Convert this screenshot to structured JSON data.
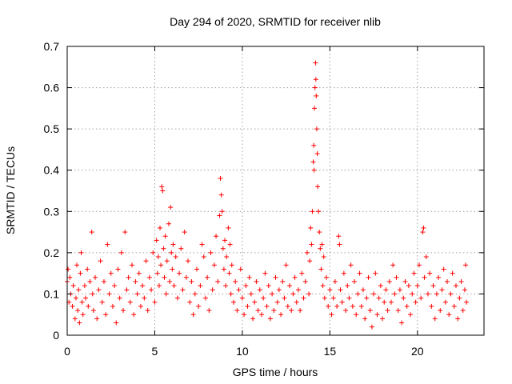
{
  "chart_data": {
    "type": "scatter",
    "title": "Day 294 of 2020, SRMTID for receiver nlib",
    "xlabel": "GPS time / hours",
    "ylabel": "SRMTID / TECUs",
    "xlim": [
      0,
      23.8
    ],
    "ylim": [
      0,
      0.7
    ],
    "x_ticks": [
      0,
      5,
      10,
      15,
      20
    ],
    "y_ticks": [
      0,
      0.1,
      0.2,
      0.3,
      0.4,
      0.5,
      0.6,
      0.7
    ],
    "x_tick_labels": [
      "0",
      "5",
      "10",
      "15",
      "20"
    ],
    "y_tick_labels": [
      "0",
      "0.1",
      "0.2",
      "0.3",
      "0.4",
      "0.5",
      "0.6",
      "0.7"
    ],
    "grid": true,
    "marker": "plus",
    "color": "#ff0000",
    "series": [
      {
        "name": "SRMTID",
        "points": [
          [
            0.0,
            0.13
          ],
          [
            0.05,
            0.16
          ],
          [
            0.1,
            0.08
          ],
          [
            0.15,
            0.14
          ],
          [
            0.2,
            0.1
          ],
          [
            0.3,
            0.07
          ],
          [
            0.35,
            0.12
          ],
          [
            0.45,
            0.04
          ],
          [
            0.5,
            0.09
          ],
          [
            0.55,
            0.17
          ],
          [
            0.6,
            0.06
          ],
          [
            0.65,
            0.11
          ],
          [
            0.7,
            0.03
          ],
          [
            0.75,
            0.15
          ],
          [
            0.8,
            0.2
          ],
          [
            0.85,
            0.08
          ],
          [
            0.9,
            0.05
          ],
          [
            1.0,
            0.12
          ],
          [
            1.05,
            0.09
          ],
          [
            1.15,
            0.16
          ],
          [
            1.2,
            0.07
          ],
          [
            1.3,
            0.13
          ],
          [
            1.4,
            0.25
          ],
          [
            1.45,
            0.1
          ],
          [
            1.5,
            0.06
          ],
          [
            1.6,
            0.14
          ],
          [
            1.7,
            0.04
          ],
          [
            1.8,
            0.11
          ],
          [
            1.9,
            0.18
          ],
          [
            2.0,
            0.08
          ],
          [
            2.1,
            0.13
          ],
          [
            2.2,
            0.05
          ],
          [
            2.3,
            0.22
          ],
          [
            2.4,
            0.1
          ],
          [
            2.5,
            0.15
          ],
          [
            2.6,
            0.07
          ],
          [
            2.7,
            0.12
          ],
          [
            2.8,
            0.03
          ],
          [
            2.9,
            0.16
          ],
          [
            3.0,
            0.09
          ],
          [
            3.1,
            0.2
          ],
          [
            3.2,
            0.06
          ],
          [
            3.3,
            0.25
          ],
          [
            3.4,
            0.11
          ],
          [
            3.5,
            0.14
          ],
          [
            3.6,
            0.08
          ],
          [
            3.7,
            0.17
          ],
          [
            3.8,
            0.05
          ],
          [
            3.9,
            0.13
          ],
          [
            4.0,
            0.1
          ],
          [
            4.1,
            0.15
          ],
          [
            4.2,
            0.07
          ],
          [
            4.3,
            0.12
          ],
          [
            4.4,
            0.09
          ],
          [
            4.5,
            0.18
          ],
          [
            4.6,
            0.06
          ],
          [
            4.7,
            0.14
          ],
          [
            4.8,
            0.11
          ],
          [
            4.9,
            0.2
          ],
          [
            5.0,
            0.08
          ],
          [
            5.1,
            0.23
          ],
          [
            5.15,
            0.15
          ],
          [
            5.2,
            0.19
          ],
          [
            5.25,
            0.12
          ],
          [
            5.3,
            0.26
          ],
          [
            5.35,
            0.17
          ],
          [
            5.4,
            0.36
          ],
          [
            5.45,
            0.35
          ],
          [
            5.5,
            0.21
          ],
          [
            5.55,
            0.14
          ],
          [
            5.6,
            0.24
          ],
          [
            5.65,
            0.1
          ],
          [
            5.7,
            0.18
          ],
          [
            5.8,
            0.27
          ],
          [
            5.85,
            0.13
          ],
          [
            5.9,
            0.31
          ],
          [
            5.95,
            0.2
          ],
          [
            6.0,
            0.16
          ],
          [
            6.05,
            0.22
          ],
          [
            6.1,
            0.12
          ],
          [
            6.2,
            0.19
          ],
          [
            6.3,
            0.09
          ],
          [
            6.4,
            0.15
          ],
          [
            6.5,
            0.21
          ],
          [
            6.6,
            0.11
          ],
          [
            6.7,
            0.25
          ],
          [
            6.8,
            0.14
          ],
          [
            6.9,
            0.18
          ],
          [
            7.0,
            0.08
          ],
          [
            7.1,
            0.13
          ],
          [
            7.2,
            0.05
          ],
          [
            7.3,
            0.1
          ],
          [
            7.4,
            0.16
          ],
          [
            7.5,
            0.07
          ],
          [
            7.6,
            0.12
          ],
          [
            7.7,
            0.22
          ],
          [
            7.8,
            0.19
          ],
          [
            7.9,
            0.09
          ],
          [
            8.0,
            0.14
          ],
          [
            8.1,
            0.06
          ],
          [
            8.2,
            0.2
          ],
          [
            8.3,
            0.11
          ],
          [
            8.4,
            0.17
          ],
          [
            8.5,
            0.24
          ],
          [
            8.6,
            0.13
          ],
          [
            8.7,
            0.29
          ],
          [
            8.75,
            0.38
          ],
          [
            8.8,
            0.34
          ],
          [
            8.85,
            0.3
          ],
          [
            8.9,
            0.21
          ],
          [
            8.95,
            0.16
          ],
          [
            9.0,
            0.23
          ],
          [
            9.05,
            0.12
          ],
          [
            9.1,
            0.19
          ],
          [
            9.2,
            0.26
          ],
          [
            9.25,
            0.15
          ],
          [
            9.3,
            0.22
          ],
          [
            9.35,
            0.1
          ],
          [
            9.4,
            0.17
          ],
          [
            9.5,
            0.08
          ],
          [
            9.6,
            0.13
          ],
          [
            9.7,
            0.06
          ],
          [
            9.8,
            0.11
          ],
          [
            9.9,
            0.16
          ],
          [
            10.0,
            0.09
          ],
          [
            10.1,
            0.05
          ],
          [
            10.2,
            0.12
          ],
          [
            10.3,
            0.07
          ],
          [
            10.4,
            0.14
          ],
          [
            10.5,
            0.1
          ],
          [
            10.6,
            0.04
          ],
          [
            10.7,
            0.08
          ],
          [
            10.8,
            0.13
          ],
          [
            10.9,
            0.06
          ],
          [
            11.0,
            0.11
          ],
          [
            11.1,
            0.05
          ],
          [
            11.2,
            0.09
          ],
          [
            11.3,
            0.15
          ],
          [
            11.4,
            0.07
          ],
          [
            11.5,
            0.12
          ],
          [
            11.6,
            0.04
          ],
          [
            11.7,
            0.1
          ],
          [
            11.8,
            0.06
          ],
          [
            11.9,
            0.14
          ],
          [
            12.0,
            0.08
          ],
          [
            12.1,
            0.11
          ],
          [
            12.2,
            0.05
          ],
          [
            12.3,
            0.13
          ],
          [
            12.4,
            0.09
          ],
          [
            12.5,
            0.17
          ],
          [
            12.6,
            0.07
          ],
          [
            12.7,
            0.12
          ],
          [
            12.8,
            0.06
          ],
          [
            12.9,
            0.1
          ],
          [
            13.0,
            0.14
          ],
          [
            13.1,
            0.08
          ],
          [
            13.2,
            0.11
          ],
          [
            13.3,
            0.06
          ],
          [
            13.4,
            0.15
          ],
          [
            13.5,
            0.09
          ],
          [
            13.6,
            0.13
          ],
          [
            13.7,
            0.2
          ],
          [
            13.8,
            0.1
          ],
          [
            13.85,
            0.18
          ],
          [
            13.9,
            0.26
          ],
          [
            13.95,
            0.22
          ],
          [
            14.0,
            0.3
          ],
          [
            14.05,
            0.42
          ],
          [
            14.08,
            0.46
          ],
          [
            14.1,
            0.4
          ],
          [
            14.12,
            0.55
          ],
          [
            14.15,
            0.6
          ],
          [
            14.18,
            0.66
          ],
          [
            14.2,
            0.62
          ],
          [
            14.22,
            0.58
          ],
          [
            14.25,
            0.5
          ],
          [
            14.28,
            0.44
          ],
          [
            14.3,
            0.36
          ],
          [
            14.35,
            0.3
          ],
          [
            14.4,
            0.25
          ],
          [
            14.45,
            0.21
          ],
          [
            14.5,
            0.16
          ],
          [
            14.55,
            0.22
          ],
          [
            14.6,
            0.12
          ],
          [
            14.65,
            0.19
          ],
          [
            14.7,
            0.09
          ],
          [
            14.8,
            0.14
          ],
          [
            14.9,
            0.07
          ],
          [
            15.0,
            0.11
          ],
          [
            15.1,
            0.05
          ],
          [
            15.2,
            0.09
          ],
          [
            15.3,
            0.13
          ],
          [
            15.4,
            0.07
          ],
          [
            15.5,
            0.24
          ],
          [
            15.55,
            0.22
          ],
          [
            15.6,
            0.11
          ],
          [
            15.7,
            0.08
          ],
          [
            15.8,
            0.15
          ],
          [
            15.9,
            0.06
          ],
          [
            16.0,
            0.12
          ],
          [
            16.1,
            0.09
          ],
          [
            16.2,
            0.17
          ],
          [
            16.3,
            0.07
          ],
          [
            16.4,
            0.13
          ],
          [
            16.5,
            0.05
          ],
          [
            16.6,
            0.1
          ],
          [
            16.7,
            0.15
          ],
          [
            16.8,
            0.07
          ],
          [
            16.9,
            0.11
          ],
          [
            17.0,
            0.04
          ],
          [
            17.1,
            0.09
          ],
          [
            17.2,
            0.14
          ],
          [
            17.3,
            0.06
          ],
          [
            17.4,
            0.02
          ],
          [
            17.5,
            0.1
          ],
          [
            17.6,
            0.15
          ],
          [
            17.7,
            0.05
          ],
          [
            17.8,
            0.09
          ],
          [
            17.9,
            0.12
          ],
          [
            18.0,
            0.04
          ],
          [
            18.1,
            0.08
          ],
          [
            18.2,
            0.11
          ],
          [
            18.3,
            0.06
          ],
          [
            18.4,
            0.13
          ],
          [
            18.5,
            0.08
          ],
          [
            18.6,
            0.17
          ],
          [
            18.7,
            0.1
          ],
          [
            18.8,
            0.14
          ],
          [
            18.9,
            0.06
          ],
          [
            19.0,
            0.11
          ],
          [
            19.1,
            0.03
          ],
          [
            19.2,
            0.09
          ],
          [
            19.3,
            0.13
          ],
          [
            19.4,
            0.07
          ],
          [
            19.5,
            0.12
          ],
          [
            19.6,
            0.05
          ],
          [
            19.7,
            0.1
          ],
          [
            19.8,
            0.15
          ],
          [
            19.9,
            0.08
          ],
          [
            20.0,
            0.12
          ],
          [
            20.1,
            0.17
          ],
          [
            20.2,
            0.09
          ],
          [
            20.3,
            0.25
          ],
          [
            20.35,
            0.26
          ],
          [
            20.4,
            0.14
          ],
          [
            20.5,
            0.19
          ],
          [
            20.6,
            0.1
          ],
          [
            20.7,
            0.15
          ],
          [
            20.8,
            0.07
          ],
          [
            20.9,
            0.12
          ],
          [
            21.0,
            0.04
          ],
          [
            21.1,
            0.1
          ],
          [
            21.2,
            0.14
          ],
          [
            21.3,
            0.06
          ],
          [
            21.4,
            0.11
          ],
          [
            21.5,
            0.16
          ],
          [
            21.6,
            0.08
          ],
          [
            21.7,
            0.13
          ],
          [
            21.8,
            0.05
          ],
          [
            21.9,
            0.1
          ],
          [
            22.0,
            0.15
          ],
          [
            22.1,
            0.07
          ],
          [
            22.2,
            0.12
          ],
          [
            22.3,
            0.04
          ],
          [
            22.4,
            0.09
          ],
          [
            22.5,
            0.13
          ],
          [
            22.6,
            0.06
          ],
          [
            22.7,
            0.11
          ],
          [
            22.75,
            0.17
          ],
          [
            22.8,
            0.08
          ]
        ]
      }
    ]
  }
}
